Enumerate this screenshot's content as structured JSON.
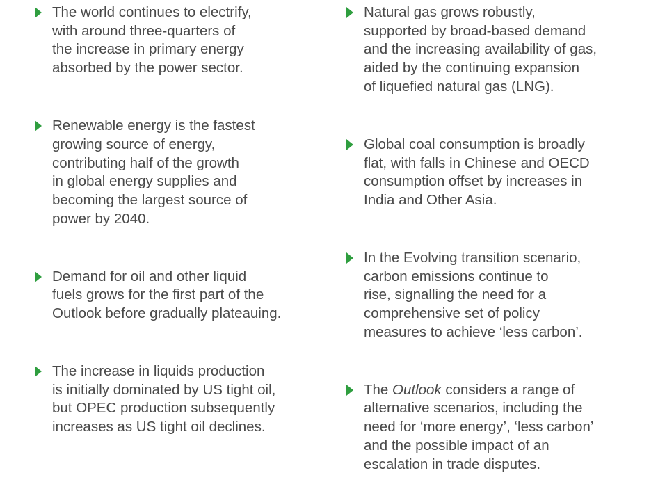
{
  "columns": [
    {
      "bullets": [
        {
          "lines": [
            "The world continues to electrify,",
            "with around three-quarters of",
            "the increase in primary energy",
            "absorbed by the power sector."
          ]
        },
        {
          "lines": [
            "Renewable energy is the fastest",
            "growing source of energy,",
            "contributing half of the growth",
            "in global energy supplies and",
            "becoming the largest source of",
            "power by 2040."
          ]
        },
        {
          "lines": [
            "Demand for oil and other liquid",
            "fuels grows for the first part of the",
            "Outlook before gradually plateauing."
          ]
        },
        {
          "lines": [
            "The increase in liquids production",
            "is initially dominated by US tight oil,",
            "but OPEC production subsequently",
            "increases as US tight oil declines."
          ]
        }
      ]
    },
    {
      "bullets": [
        {
          "lines": [
            "Natural gas grows robustly,",
            "supported by broad-based demand",
            "and the increasing availability of gas,",
            "aided by the continuing expansion",
            "of liquefied natural gas (LNG)."
          ]
        },
        {
          "lines": [
            "Global coal consumption is broadly",
            "flat, with falls in Chinese and OECD",
            "consumption offset by increases in",
            "India and Other Asia."
          ]
        },
        {
          "lines": [
            "In the Evolving transition scenario,",
            "carbon emissions continue to",
            "rise, signalling the need for a",
            "comprehensive set of policy",
            "measures to achieve ‘less carbon’."
          ]
        },
        {
          "lines": [
            [
              "The ",
              "Outlook",
              " considers a range of"
            ],
            "alternative scenarios, including the",
            "need for ‘more energy’, ‘less carbon’",
            "and the possible impact of an",
            "escalation in trade disputes."
          ]
        }
      ]
    }
  ]
}
